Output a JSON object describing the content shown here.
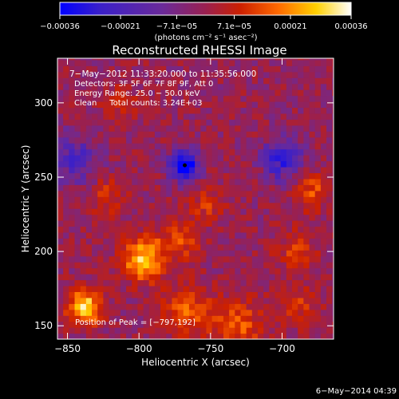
{
  "chart_data": {
    "type": "heatmap",
    "title": "Reconstructed RHESSI Image",
    "xlabel": "Heliocentric X (arcsec)",
    "ylabel": "Heliocentric Y (arcsec)",
    "xlim": [
      -857,
      -664
    ],
    "ylim": [
      141,
      330
    ],
    "x_ticks": [
      -850,
      -800,
      -750,
      -700
    ],
    "y_ticks": [
      150,
      200,
      250,
      300
    ],
    "x_tick_labels": [
      "−850",
      "−800",
      "−750",
      "−700"
    ],
    "y_tick_labels": [
      "150",
      "200",
      "250",
      "300"
    ],
    "colorbar": {
      "range": [
        -0.00036,
        0.00036
      ],
      "ticks": [
        -0.00036,
        -0.00021,
        -7.1e-05,
        7.1e-05,
        0.00021,
        0.00036
      ],
      "tick_labels": [
        "−0.00036",
        "−0.00021",
        "−7.1e−05",
        "7.1e−05",
        "0.00021",
        "0.00036"
      ],
      "unit_label": "(photons cm⁻² s⁻¹ asec⁻²)",
      "colors": [
        "#0000ff",
        "#3b20c8",
        "#6a2a9a",
        "#9a2050",
        "#cc2000",
        "#ff6a00",
        "#ffd000",
        "#ffffff"
      ]
    },
    "annotations": [
      "7−May−2012 11:33:20.000 to 11:35:56.000",
      "Detectors: 3F 5F 6F 7F 8F 9F, Att 0",
      "Energy Range: 25.0 − 50.0 keV",
      "Clean     Total counts: 3.24E+03",
      "Position of Peak = [−797,192]"
    ],
    "peak_position": [
      -797,
      192
    ],
    "date_stamp": "6−May−2014 04:39",
    "sources": [
      {
        "x": -838,
        "y": 163,
        "amp": 0.00036,
        "sigma": 8
      },
      {
        "x": -797,
        "y": 195,
        "amp": 0.00032,
        "sigma": 10
      },
      {
        "x": -772,
        "y": 208,
        "amp": 0.00016,
        "sigma": 10
      },
      {
        "x": -766,
        "y": 160,
        "amp": 0.00018,
        "sigma": 12
      },
      {
        "x": -730,
        "y": 150,
        "amp": 0.00017,
        "sigma": 12
      },
      {
        "x": -680,
        "y": 240,
        "amp": 0.00018,
        "sigma": 8
      },
      {
        "x": -690,
        "y": 200,
        "amp": 0.00012,
        "sigma": 10
      },
      {
        "x": -690,
        "y": 165,
        "amp": 0.00012,
        "sigma": 10
      },
      {
        "x": -822,
        "y": 238,
        "amp": 0.00012,
        "sigma": 9
      },
      {
        "x": -752,
        "y": 232,
        "amp": 0.00012,
        "sigma": 8
      },
      {
        "x": -815,
        "y": 300,
        "amp": 8e-05,
        "sigma": 10
      },
      {
        "x": -768,
        "y": 258,
        "amp": -0.00034,
        "sigma": 7
      },
      {
        "x": -700,
        "y": 262,
        "amp": -0.0002,
        "sigma": 10
      },
      {
        "x": -845,
        "y": 262,
        "amp": -0.00015,
        "sigma": 12
      }
    ]
  }
}
